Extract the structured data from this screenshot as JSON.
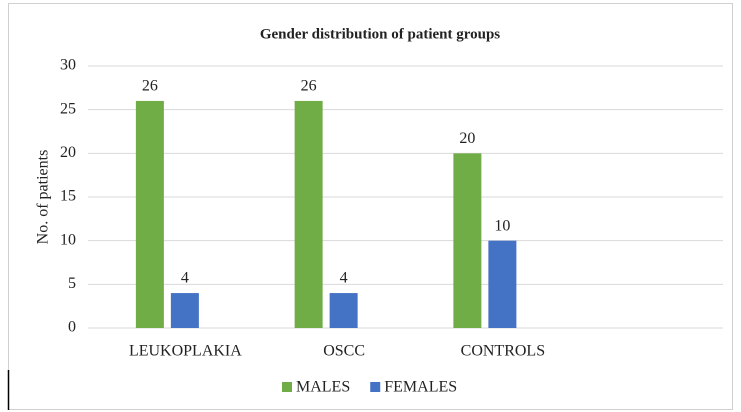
{
  "chart_data": {
    "type": "bar",
    "title": "Gender distribution  of patient groups",
    "y_label": "No. of patients",
    "categories": [
      "LEUKOPLAKIA",
      "OSCC",
      "CONTROLS",
      null
    ],
    "series": [
      {
        "name": "MALES",
        "color": "#70ad47",
        "values": [
          26,
          26,
          20,
          null
        ]
      },
      {
        "name": "FEMALES",
        "color": "#4472c4",
        "values": [
          4,
          4,
          10,
          null
        ]
      }
    ],
    "ylim": [
      0,
      30
    ],
    "yticks": [
      0,
      5,
      10,
      15,
      20,
      25,
      30
    ],
    "grid": true,
    "legend": "bottom"
  }
}
